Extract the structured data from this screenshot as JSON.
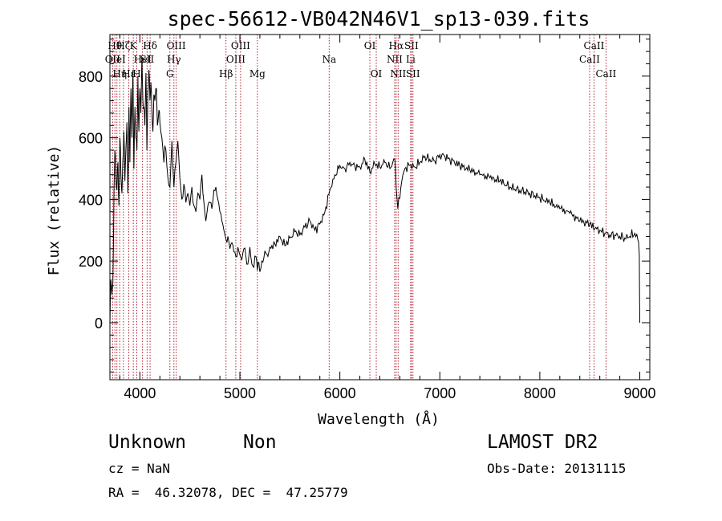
{
  "chart_data": {
    "type": "line",
    "title": "spec-56612-VB042N46V1_sp13-039.fits",
    "xlabel": "Wavelength (Å)",
    "ylabel": "Flux (relative)",
    "xlim": [
      3700,
      9100
    ],
    "ylim": [
      -185,
      935
    ],
    "x_ticks": [
      4000,
      5000,
      6000,
      7000,
      8000,
      9000
    ],
    "y_ticks": [
      0,
      200,
      400,
      600,
      800
    ],
    "grid": false,
    "series": [
      {
        "color": "#000000",
        "x": [
          3700,
          3710,
          3720,
          3730,
          3740,
          3750,
          3760,
          3770,
          3780,
          3790,
          3800,
          3810,
          3820,
          3830,
          3840,
          3850,
          3860,
          3870,
          3880,
          3890,
          3900,
          3910,
          3920,
          3930,
          3940,
          3950,
          3960,
          3970,
          3980,
          3990,
          4000,
          4010,
          4020,
          4030,
          4040,
          4050,
          4060,
          4070,
          4080,
          4090,
          4100,
          4110,
          4120,
          4130,
          4140,
          4150,
          4160,
          4170,
          4180,
          4190,
          4200,
          4220,
          4240,
          4260,
          4280,
          4300,
          4320,
          4340,
          4360,
          4380,
          4400,
          4420,
          4440,
          4460,
          4480,
          4500,
          4520,
          4540,
          4560,
          4580,
          4600,
          4620,
          4640,
          4660,
          4680,
          4700,
          4720,
          4740,
          4760,
          4780,
          4800,
          4820,
          4840,
          4861,
          4880,
          4900,
          4920,
          4940,
          4960,
          4980,
          5000,
          5020,
          5040,
          5060,
          5080,
          5100,
          5120,
          5140,
          5160,
          5175,
          5190,
          5200,
          5220,
          5240,
          5260,
          5280,
          5300,
          5350,
          5400,
          5450,
          5500,
          5550,
          5600,
          5650,
          5700,
          5750,
          5800,
          5850,
          5900,
          5950,
          6000,
          6050,
          6100,
          6150,
          6200,
          6250,
          6300,
          6350,
          6400,
          6450,
          6500,
          6550,
          6563,
          6580,
          6620,
          6650,
          6700,
          6750,
          6800,
          6850,
          6900,
          6950,
          7000,
          7050,
          7100,
          7200,
          7300,
          7400,
          7500,
          7600,
          7700,
          7800,
          7900,
          8000,
          8100,
          8200,
          8300,
          8400,
          8500,
          8550,
          8600,
          8650,
          8700,
          8750,
          8800,
          8850,
          8900,
          8950,
          8980,
          8995,
          9000
        ],
        "y": [
          -10,
          140,
          90,
          130,
          420,
          560,
          480,
          430,
          520,
          380,
          600,
          480,
          420,
          530,
          620,
          460,
          560,
          650,
          420,
          700,
          520,
          760,
          600,
          820,
          500,
          700,
          600,
          560,
          800,
          620,
          760,
          680,
          860,
          720,
          700,
          640,
          810,
          560,
          750,
          820,
          720,
          780,
          690,
          620,
          740,
          720,
          760,
          700,
          650,
          690,
          650,
          600,
          520,
          560,
          470,
          440,
          590,
          440,
          520,
          590,
          470,
          400,
          450,
          390,
          420,
          380,
          440,
          380,
          360,
          420,
          400,
          480,
          390,
          330,
          380,
          390,
          370,
          430,
          440,
          400,
          360,
          330,
          300,
          270,
          280,
          240,
          260,
          230,
          215,
          245,
          220,
          205,
          240,
          215,
          190,
          245,
          190,
          180,
          215,
          170,
          195,
          165,
          200,
          210,
          225,
          215,
          245,
          255,
          280,
          250,
          275,
          295,
          285,
          310,
          330,
          300,
          320,
          360,
          430,
          480,
          510,
          500,
          520,
          510,
          505,
          530,
          490,
          515,
          505,
          520,
          500,
          530,
          440,
          370,
          460,
          500,
          510,
          505,
          520,
          540,
          530,
          525,
          545,
          540,
          530,
          510,
          495,
          480,
          470,
          460,
          440,
          430,
          420,
          405,
          390,
          370,
          355,
          330,
          320,
          305,
          300,
          290,
          285,
          285,
          280,
          275,
          280,
          290,
          270,
          220,
          0
        ]
      }
    ],
    "annotations": {
      "line_color": "#b02030",
      "lines": [
        {
          "x": 3727,
          "row": 1,
          "label": "OII"
        },
        {
          "x": 3750,
          "row": 0,
          "label": "Hθ"
        },
        {
          "x": 3770,
          "row": 1,
          "label": "HeI"
        },
        {
          "x": 3798,
          "row": 2,
          "label": "Hη"
        },
        {
          "x": 3835,
          "row": 0,
          "label": "Hζ"
        },
        {
          "x": 3889,
          "row": 2,
          "label": "Hε"
        },
        {
          "x": 3934,
          "row": 0,
          "label": "K"
        },
        {
          "x": 3969,
          "row": 2,
          "label": "H"
        },
        {
          "x": 4026,
          "row": 1,
          "label": "HeI"
        },
        {
          "x": 4072,
          "row": 1,
          "label": "SII"
        },
        {
          "x": 4102,
          "row": 0,
          "label": "Hδ"
        },
        {
          "x": 4300,
          "row": 2,
          "label": "G"
        },
        {
          "x": 4340,
          "row": 1,
          "label": "Hγ"
        },
        {
          "x": 4363,
          "row": 0,
          "label": "OIII"
        },
        {
          "x": 4861,
          "row": 2,
          "label": "Hβ"
        },
        {
          "x": 4959,
          "row": 1,
          "label": "OIII"
        },
        {
          "x": 5007,
          "row": 0,
          "label": "OIII"
        },
        {
          "x": 5175,
          "row": 2,
          "label": "Mg"
        },
        {
          "x": 5893,
          "row": 1,
          "label": "Na"
        },
        {
          "x": 6300,
          "row": 0,
          "label": "OI"
        },
        {
          "x": 6364,
          "row": 2,
          "label": "OI"
        },
        {
          "x": 6548,
          "row": 1,
          "label": "NII"
        },
        {
          "x": 6563,
          "row": 0,
          "label": "Hα"
        },
        {
          "x": 6583,
          "row": 2,
          "label": "NII"
        },
        {
          "x": 6708,
          "row": 1,
          "label": "Li"
        },
        {
          "x": 6716,
          "row": 0,
          "label": "SII"
        },
        {
          "x": 6731,
          "row": 2,
          "label": "SII"
        },
        {
          "x": 8498,
          "row": 1,
          "label": "CaII"
        },
        {
          "x": 8542,
          "row": 0,
          "label": "CaII"
        },
        {
          "x": 8662,
          "row": 2,
          "label": "CaII"
        }
      ]
    }
  },
  "info": {
    "class": "Unknown",
    "subclass": "Non",
    "survey": "LAMOST DR2",
    "cz": "cz = NaN",
    "obs_date": "Obs-Date: 20131115",
    "radec": "RA =  46.32078, DEC =  47.25779"
  }
}
